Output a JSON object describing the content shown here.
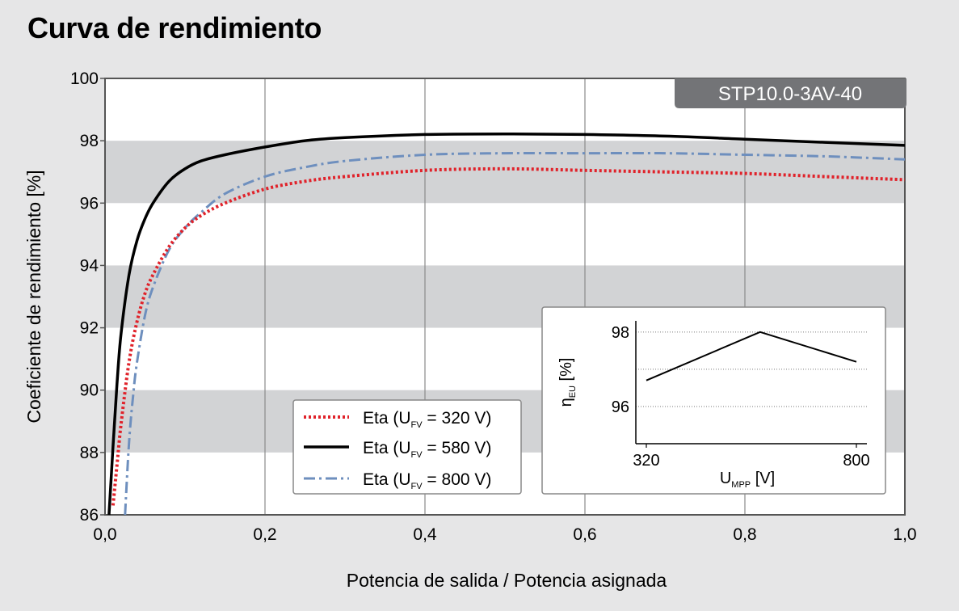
{
  "page_title": "Curva de rendimiento",
  "colors": {
    "band": "#d2d3d5",
    "plot_bg": "#ffffff",
    "badge_bg": "#737477",
    "series_320": "#e0222a",
    "series_580": "#000000",
    "series_800": "#6e8fbe"
  },
  "chart_data": [
    {
      "type": "line",
      "badge": "STP10.0-3AV-40",
      "xlabel": "Potencia de salida / Potencia asignada",
      "ylabel": "Coeficiente de rendimiento [%]",
      "xlim": [
        0,
        1
      ],
      "ylim": [
        86,
        100
      ],
      "x_ticks": [
        "0,0",
        "0,2",
        "0,4",
        "0,6",
        "0,8",
        "1,0"
      ],
      "y_ticks": [
        "86",
        "88",
        "90",
        "92",
        "94",
        "96",
        "98",
        "100"
      ],
      "grid": "vertical lines, alternating horizontal bands",
      "legend_position": "bottom-center",
      "series": [
        {
          "name": "Eta (U",
          "name_sub": "FV",
          "name_suffix": " = 320 V)",
          "style": "dotted",
          "x": [
            0.01,
            0.015,
            0.02,
            0.03,
            0.04,
            0.05,
            0.06,
            0.08,
            0.1,
            0.12,
            0.15,
            0.2,
            0.25,
            0.3,
            0.4,
            0.5,
            0.6,
            0.7,
            0.8,
            0.9,
            1.0
          ],
          "y": [
            86.3,
            87.6,
            88.9,
            90.9,
            92.2,
            93.1,
            93.7,
            94.6,
            95.2,
            95.6,
            96.0,
            96.45,
            96.7,
            96.85,
            97.05,
            97.1,
            97.05,
            97.0,
            96.95,
            96.85,
            96.75
          ]
        },
        {
          "name": "Eta (U",
          "name_sub": "FV",
          "name_suffix": " = 580 V)",
          "style": "solid",
          "x": [
            0.005,
            0.01,
            0.015,
            0.02,
            0.03,
            0.04,
            0.05,
            0.06,
            0.08,
            0.1,
            0.12,
            0.15,
            0.2,
            0.25,
            0.3,
            0.4,
            0.5,
            0.6,
            0.7,
            0.8,
            0.9,
            1.0
          ],
          "y": [
            86.0,
            88.2,
            90.2,
            91.8,
            93.7,
            94.8,
            95.5,
            96.0,
            96.7,
            97.1,
            97.35,
            97.55,
            97.8,
            98.0,
            98.1,
            98.2,
            98.22,
            98.2,
            98.15,
            98.05,
            97.95,
            97.85
          ]
        },
        {
          "name": "Eta (U",
          "name_sub": "FV",
          "name_suffix": " = 800 V)",
          "style": "dash-dot",
          "x": [
            0.025,
            0.03,
            0.035,
            0.04,
            0.05,
            0.06,
            0.08,
            0.1,
            0.12,
            0.15,
            0.2,
            0.25,
            0.3,
            0.4,
            0.5,
            0.6,
            0.7,
            0.8,
            0.9,
            1.0
          ],
          "y": [
            86.0,
            88.3,
            89.8,
            90.9,
            92.4,
            93.3,
            94.5,
            95.2,
            95.7,
            96.3,
            96.85,
            97.15,
            97.35,
            97.55,
            97.6,
            97.6,
            97.6,
            97.55,
            97.5,
            97.4
          ]
        }
      ]
    },
    {
      "type": "line",
      "xlabel": "U",
      "xlabel_sub": "MPP",
      "xlabel_suffix": " [V]",
      "ylabel": "η",
      "ylabel_sub": "EU",
      "ylabel_suffix": " [%]",
      "xlim": [
        320,
        800
      ],
      "ylim": [
        95.0,
        98.3
      ],
      "x_ticks": [
        "320",
        "800"
      ],
      "y_ticks": [
        "96",
        "98"
      ],
      "grid": "dotted horizontal lines",
      "series": [
        {
          "x": [
            320,
            580,
            800
          ],
          "y": [
            96.7,
            98.0,
            97.2
          ]
        }
      ]
    }
  ]
}
